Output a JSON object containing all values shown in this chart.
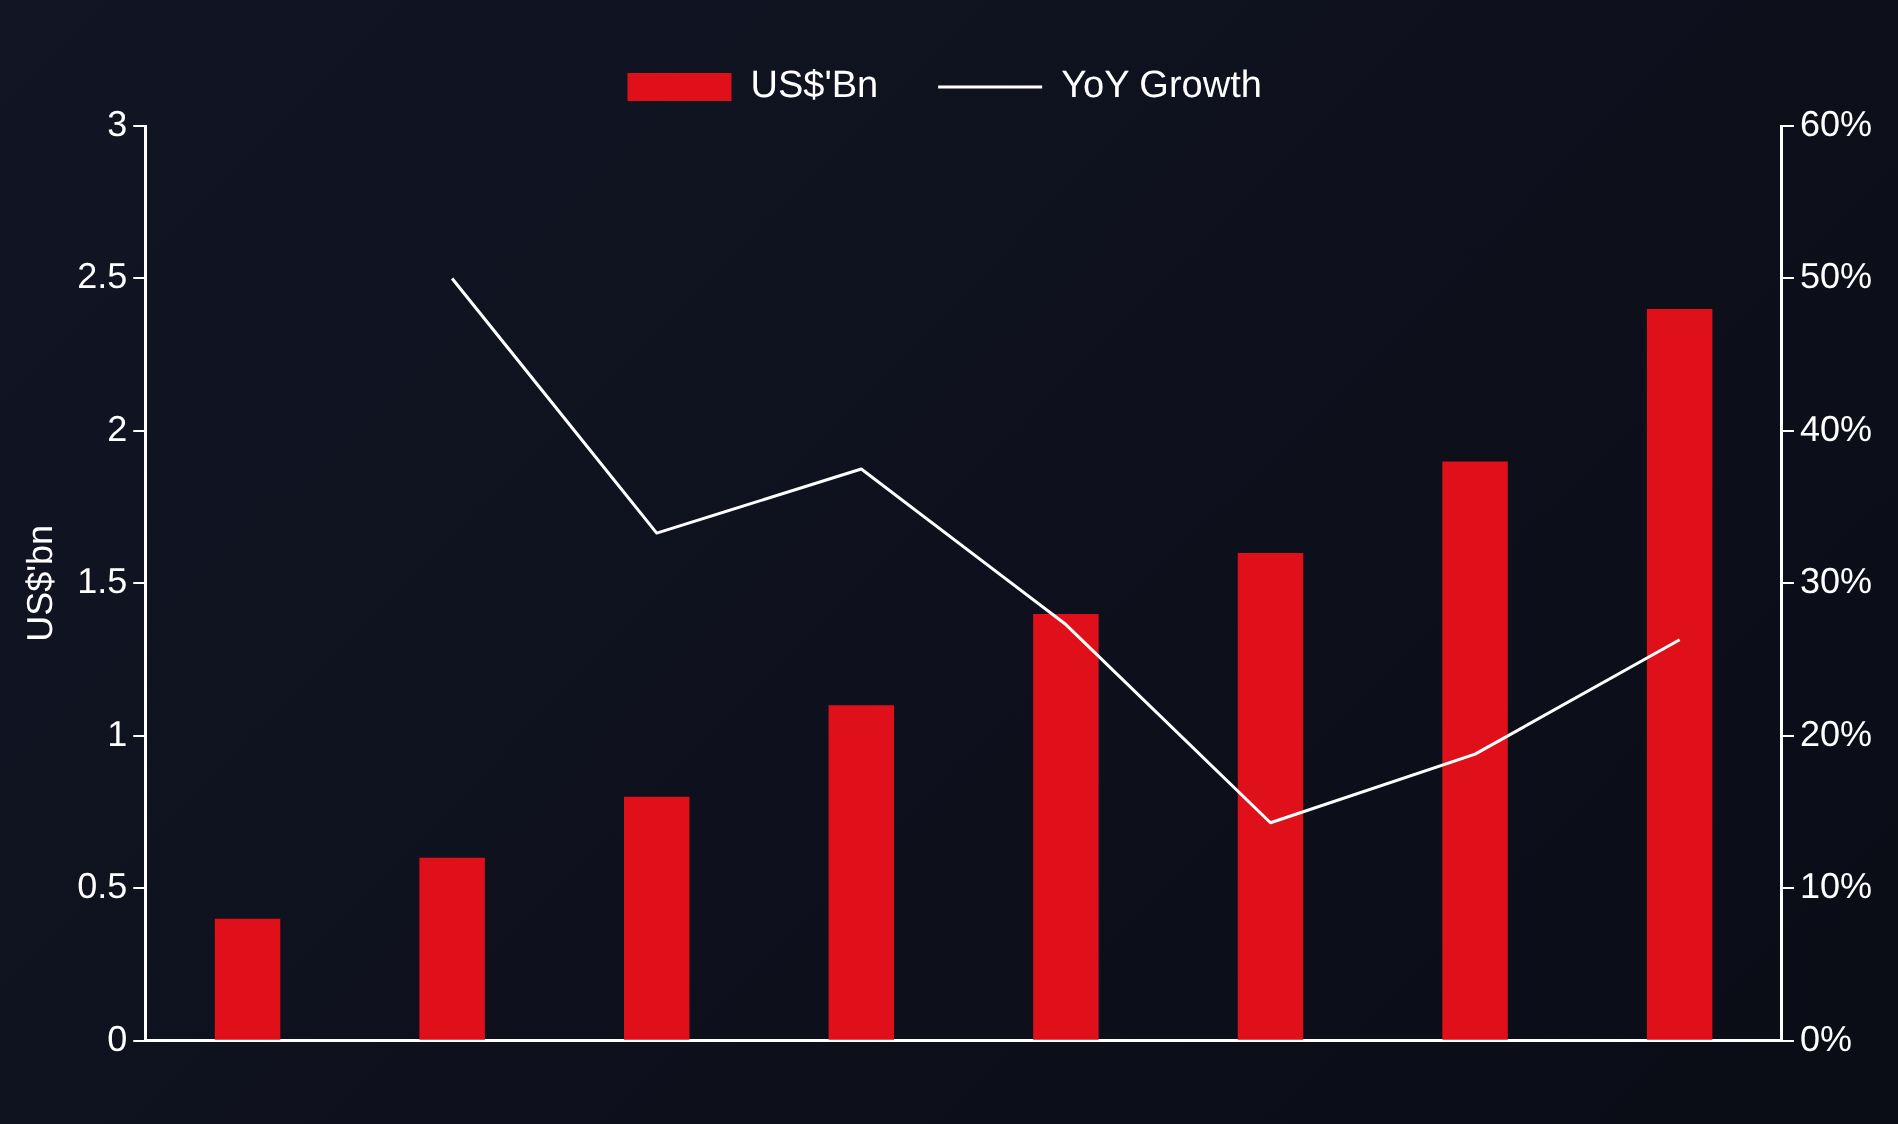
{
  "chart_data": {
    "type": "bar",
    "ylabel": "US$'bn",
    "categories": [
      null,
      null,
      null,
      null,
      null,
      null,
      null,
      null
    ],
    "series": [
      {
        "name": "US$'Bn",
        "color": "#e0101a",
        "values": [
          0.4,
          0.6,
          0.8,
          1.1,
          1.4,
          1.6,
          1.9,
          2.4
        ]
      },
      {
        "name": "YoY Growth",
        "type": "line",
        "axis": "y2",
        "color": "#ffffff",
        "values": [
          null,
          50,
          33.3,
          37.5,
          27.3,
          14.3,
          18.8,
          26.3
        ]
      }
    ],
    "ylim": [
      0,
      3
    ],
    "yticks": [
      0,
      0.5,
      1,
      1.5,
      2,
      2.5,
      3
    ],
    "y2lim": [
      0,
      60
    ],
    "y2ticks": [
      {
        "value": 0,
        "label": "0%"
      },
      {
        "value": 10,
        "label": "10%"
      },
      {
        "value": 20,
        "label": "20%"
      },
      {
        "value": 30,
        "label": "30%"
      },
      {
        "value": 40,
        "label": "40%"
      },
      {
        "value": 50,
        "label": "50%"
      },
      {
        "value": 60,
        "label": "60%"
      }
    ],
    "grid": false,
    "legend": "top",
    "marker": "none",
    "line_style": "solid"
  }
}
